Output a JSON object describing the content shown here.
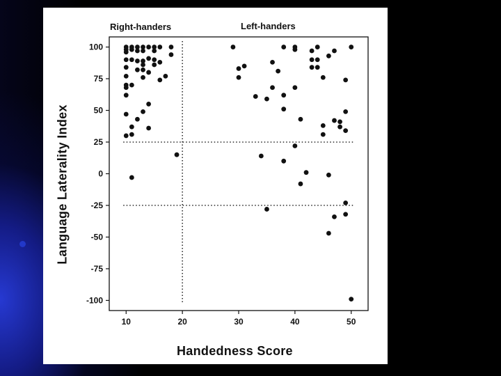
{
  "chart_data": {
    "type": "scatter",
    "title": "",
    "xlabel": "Handedness  Score",
    "ylabel": "Language  Laterality  Index",
    "xlim": [
      7,
      53
    ],
    "ylim": [
      -108,
      108
    ],
    "x_ticks": [
      10,
      20,
      30,
      40,
      50
    ],
    "y_ticks": [
      100,
      75,
      50,
      25,
      0,
      -25,
      -50,
      -75,
      -100
    ],
    "group_labels": [
      "Right-handers",
      "Left-handers"
    ],
    "thresholds": {
      "x": 20,
      "y": [
        25,
        -25
      ]
    },
    "grid": false,
    "legend": "none",
    "marker_color": "#111111",
    "points": [
      [
        10,
        100
      ],
      [
        11,
        100
      ],
      [
        12,
        100
      ],
      [
        13,
        100
      ],
      [
        14,
        100
      ],
      [
        15,
        100
      ],
      [
        16,
        100
      ],
      [
        18,
        100
      ],
      [
        10,
        98
      ],
      [
        11,
        98
      ],
      [
        12,
        97
      ],
      [
        13,
        97
      ],
      [
        15,
        97
      ],
      [
        10,
        96
      ],
      [
        10,
        90
      ],
      [
        11,
        90
      ],
      [
        12,
        89
      ],
      [
        13,
        89
      ],
      [
        15,
        90
      ],
      [
        16,
        88
      ],
      [
        13,
        86
      ],
      [
        15,
        86
      ],
      [
        10,
        84
      ],
      [
        12,
        82
      ],
      [
        13,
        82
      ],
      [
        14,
        80
      ],
      [
        18,
        94
      ],
      [
        14,
        91
      ],
      [
        10,
        77
      ],
      [
        13,
        76
      ],
      [
        16,
        74
      ],
      [
        17,
        77
      ],
      [
        10,
        70
      ],
      [
        11,
        70
      ],
      [
        10,
        68
      ],
      [
        10,
        62
      ],
      [
        14,
        55
      ],
      [
        13,
        49
      ],
      [
        10,
        47
      ],
      [
        12,
        43
      ],
      [
        11,
        37
      ],
      [
        14,
        36
      ],
      [
        11,
        31
      ],
      [
        10,
        30
      ],
      [
        19,
        15
      ],
      [
        11,
        -3
      ],
      [
        29,
        100
      ],
      [
        38,
        100
      ],
      [
        40,
        100
      ],
      [
        40,
        98
      ],
      [
        44,
        100
      ],
      [
        47,
        97
      ],
      [
        50,
        100
      ],
      [
        43,
        97
      ],
      [
        43,
        90
      ],
      [
        44,
        90
      ],
      [
        46,
        93
      ],
      [
        31,
        85
      ],
      [
        30,
        83
      ],
      [
        36,
        88
      ],
      [
        37,
        81
      ],
      [
        43,
        84
      ],
      [
        44,
        84
      ],
      [
        45,
        76
      ],
      [
        30,
        76
      ],
      [
        36,
        68
      ],
      [
        40,
        68
      ],
      [
        49,
        74
      ],
      [
        33,
        61
      ],
      [
        35,
        59
      ],
      [
        38,
        62
      ],
      [
        38,
        51
      ],
      [
        41,
        43
      ],
      [
        49,
        49
      ],
      [
        47,
        42
      ],
      [
        48,
        41
      ],
      [
        48,
        37
      ],
      [
        45,
        38
      ],
      [
        49,
        34
      ],
      [
        45,
        31
      ],
      [
        40,
        22
      ],
      [
        34,
        14
      ],
      [
        38,
        10
      ],
      [
        42,
        1
      ],
      [
        46,
        -1
      ],
      [
        41,
        -8
      ],
      [
        35,
        -28
      ],
      [
        49,
        -23
      ],
      [
        49,
        -32
      ],
      [
        47,
        -34
      ],
      [
        46,
        -47
      ],
      [
        50,
        -99
      ]
    ]
  }
}
